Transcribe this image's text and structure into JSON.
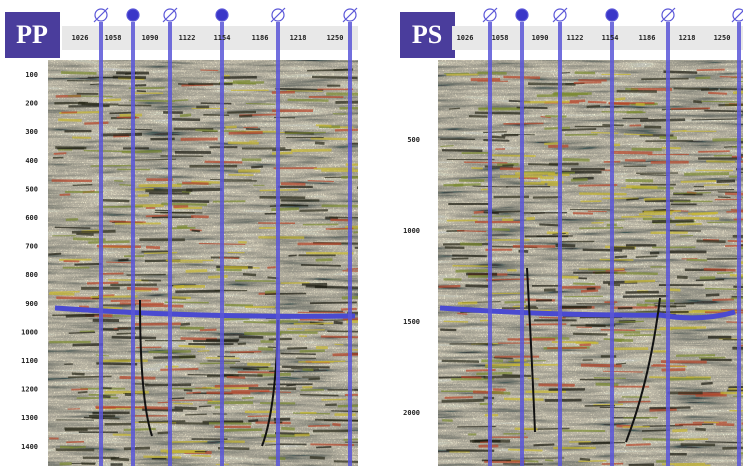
{
  "panels": [
    {
      "label": "PP",
      "x_labels": [
        1026,
        1058,
        1090,
        1122,
        1154,
        1186,
        1218,
        1250
      ],
      "y_labels": [
        100,
        200,
        300,
        400,
        500,
        600,
        700,
        800,
        900,
        1000,
        1100,
        1200,
        1300,
        1400
      ]
    },
    {
      "label": "PS",
      "x_labels": [
        1026,
        1058,
        1090,
        1122,
        1154,
        1186,
        1218,
        1250
      ],
      "y_labels": [
        500,
        1000,
        1500,
        2000
      ]
    }
  ]
}
